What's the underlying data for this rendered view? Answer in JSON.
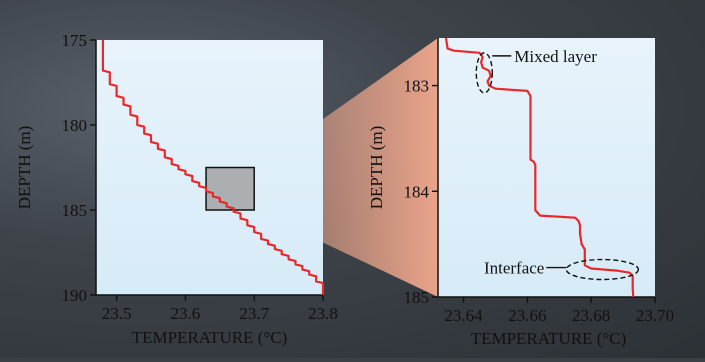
{
  "figure": {
    "background_color": "#3a4046",
    "panel_fill_top": "#e8f3fb",
    "panel_fill_bottom": "#d6ebf8",
    "trace_color": "#e8282a",
    "zoom_wedge_color": "#f3a98e",
    "zoom_box_fill": "#9a9a9a"
  },
  "chart_data": [
    {
      "type": "line",
      "panel": "left",
      "xlabel": "TEMPERATURE (°C)",
      "ylabel": "DEPTH (m)",
      "xlim": [
        23.47,
        23.8
      ],
      "ylim": [
        175,
        190
      ],
      "y_inverted": true,
      "x_ticks": [
        "23.5",
        "23.6",
        "23.7",
        "23.8"
      ],
      "y_ticks": [
        "175",
        "180",
        "185",
        "190"
      ],
      "series": [
        {
          "x": [
            23.48,
            23.48,
            23.49,
            23.49,
            23.5,
            23.5,
            23.51,
            23.51,
            23.52,
            23.52,
            23.53,
            23.53,
            23.54,
            23.54,
            23.55,
            23.55,
            23.56,
            23.56,
            23.57,
            23.57,
            23.58,
            23.58,
            23.59,
            23.59,
            23.6,
            23.6,
            23.61,
            23.61,
            23.62,
            23.62,
            23.63,
            23.63,
            23.64,
            23.64,
            23.65,
            23.65,
            23.66,
            23.66,
            23.67,
            23.67,
            23.68,
            23.68,
            23.69,
            23.69,
            23.7,
            23.7,
            23.71,
            23.71,
            23.72,
            23.72,
            23.73,
            23.73,
            23.74,
            23.74,
            23.75,
            23.75,
            23.76,
            23.76,
            23.77,
            23.77,
            23.78,
            23.78,
            23.79,
            23.79,
            23.8,
            23.8
          ],
          "y": [
            175.0,
            176.8,
            176.9,
            177.6,
            177.7,
            178.3,
            178.4,
            178.8,
            178.9,
            179.4,
            179.5,
            180.0,
            180.1,
            180.5,
            180.6,
            181.0,
            181.1,
            181.4,
            181.5,
            181.9,
            182.0,
            182.3,
            182.4,
            182.6,
            182.7,
            182.9,
            183.0,
            183.3,
            183.4,
            183.6,
            183.7,
            183.9,
            184.0,
            184.2,
            184.3,
            184.5,
            184.6,
            184.8,
            184.9,
            185.1,
            185.2,
            185.5,
            185.6,
            185.9,
            186.0,
            186.3,
            186.4,
            186.7,
            186.8,
            187.0,
            187.1,
            187.3,
            187.4,
            187.6,
            187.7,
            187.9,
            188.0,
            188.2,
            188.3,
            188.5,
            188.6,
            188.8,
            188.9,
            189.2,
            189.3,
            190.0
          ]
        }
      ],
      "zoom_box": {
        "x": [
          23.63,
          23.7
        ],
        "y": [
          182.5,
          185.0
        ]
      }
    },
    {
      "type": "line",
      "panel": "right",
      "xlabel": "TEMPERATURE (°C)",
      "ylabel": "DEPTH (m)",
      "xlim": [
        23.632,
        23.7
      ],
      "ylim": [
        182.55,
        185.0
      ],
      "y_inverted": true,
      "x_ticks": [
        "23.64",
        "23.66",
        "23.68",
        "23.70"
      ],
      "y_ticks": [
        "183",
        "184",
        "185"
      ],
      "series": [
        {
          "x": [
            23.6345,
            23.635,
            23.637,
            23.645,
            23.646,
            23.6455,
            23.646,
            23.648,
            23.6485,
            23.6475,
            23.648,
            23.65,
            23.66,
            23.661,
            23.661,
            23.662,
            23.6625,
            23.6625,
            23.664,
            23.675,
            23.676,
            23.6765,
            23.6765,
            23.677,
            23.678,
            23.678,
            23.68,
            23.688,
            23.692,
            23.693,
            23.693,
            23.6932
          ],
          "y": [
            182.55,
            182.65,
            182.67,
            182.69,
            182.73,
            182.78,
            182.83,
            182.86,
            182.91,
            182.96,
            183.0,
            183.03,
            183.05,
            183.1,
            183.7,
            183.72,
            183.75,
            184.18,
            184.23,
            184.25,
            184.28,
            184.32,
            184.4,
            184.5,
            184.55,
            184.7,
            184.73,
            184.75,
            184.77,
            184.8,
            184.92,
            185.0
          ]
        }
      ],
      "annotations": [
        {
          "text": "Mixed layer",
          "x": 23.6465,
          "y": 182.88
        },
        {
          "text": "Interface",
          "x": 23.6835,
          "y": 184.74
        }
      ]
    }
  ]
}
